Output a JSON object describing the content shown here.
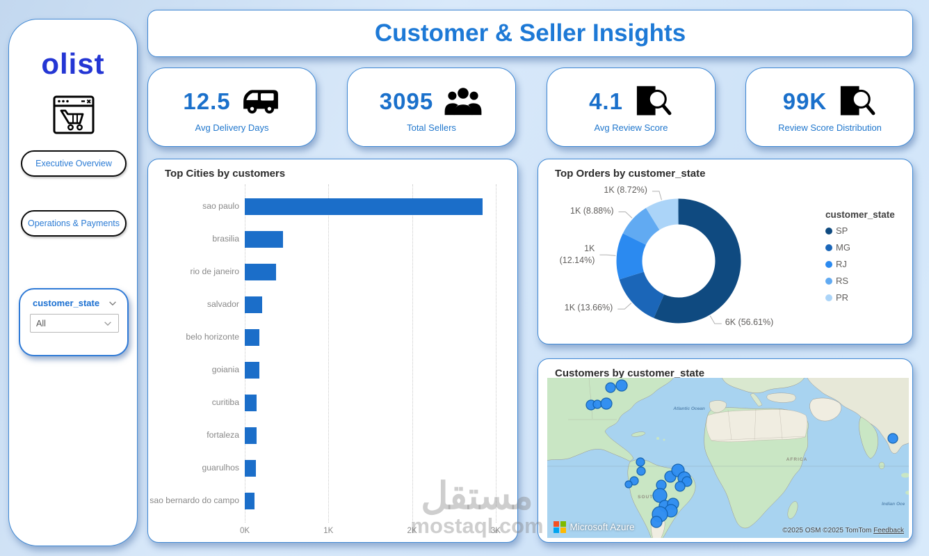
{
  "page": {
    "title": "Customer & Seller Insights"
  },
  "sidebar": {
    "logo_text": "olist",
    "nav_items": [
      {
        "label": "Executive Overview"
      },
      {
        "label": "Operations & Payments"
      }
    ],
    "filter": {
      "field_label": "customer_state",
      "selected_value": "All"
    }
  },
  "kpis": [
    {
      "value": "12.5",
      "label": "Avg Delivery Days",
      "icon": "truck-icon"
    },
    {
      "value": "3095",
      "label": "Total Sellers",
      "icon": "people-icon"
    },
    {
      "value": "4.1",
      "label": "Avg Review Score",
      "icon": "review-search-icon"
    },
    {
      "value": "99K",
      "label": "Review Score Distribution",
      "icon": "review-search-icon"
    }
  ],
  "chart_data": [
    {
      "type": "bar",
      "title": "Top Cities by customers",
      "orientation": "horizontal",
      "categories": [
        "sao paulo",
        "brasilia",
        "rio de janeiro",
        "salvador",
        "belo horizonte",
        "goiania",
        "curitiba",
        "fortaleza",
        "guarulhos",
        "sao bernardo do campo"
      ],
      "values": [
        2840,
        460,
        370,
        210,
        175,
        170,
        140,
        140,
        130,
        120
      ],
      "xlim": [
        0,
        3000
      ],
      "x_ticks": [
        {
          "label": "0K",
          "value": 0
        },
        {
          "label": "1K",
          "value": 1000
        },
        {
          "label": "2K",
          "value": 2000
        },
        {
          "label": "3K",
          "value": 3000
        }
      ],
      "bar_color": "#1b6ec9",
      "grid": "dotted-vertical"
    },
    {
      "type": "donut",
      "title": "Top Orders by customer_state",
      "legend_title": "customer_state",
      "legend_position": "right",
      "slices": [
        {
          "name": "SP",
          "label": "6K (56.61%)",
          "pct": 56.61,
          "color": "#0f4a80"
        },
        {
          "name": "MG",
          "label": "1K (13.66%)",
          "pct": 13.66,
          "color": "#1b66b8"
        },
        {
          "name": "RJ",
          "label": "1K (12.14%)",
          "pct": 12.14,
          "color": "#2b8af0"
        },
        {
          "name": "RS",
          "label": "1K (8.88%)",
          "pct": 8.88,
          "color": "#61aaf2"
        },
        {
          "name": "PR",
          "label": "1K (8.72%)",
          "pct": 8.72,
          "color": "#abd4f8"
        }
      ]
    },
    {
      "type": "map",
      "title": "Customers by customer_state",
      "ocean_labels": {
        "atlantic": "Atlantic Ocean",
        "africa": "AFRICA",
        "south": "SOUTH",
        "indian": "Indian Oce"
      },
      "brand": "Microsoft Azure",
      "attribution": "©2025 OSM  ©2025 TomTom",
      "feedback_link": "Feedback",
      "bubble_color": "#2e8df2",
      "bubble_stroke": "#1160ae",
      "points": [
        [
          182,
          28,
          14
        ],
        [
          214,
          22,
          16
        ],
        [
          126,
          78,
          14
        ],
        [
          144,
          76,
          12
        ],
        [
          170,
          74,
          16
        ],
        [
          994,
          174,
          14
        ],
        [
          268,
          242,
          12
        ],
        [
          270,
          268,
          12
        ],
        [
          250,
          296,
          12
        ],
        [
          234,
          306,
          10
        ],
        [
          354,
          284,
          16
        ],
        [
          376,
          266,
          18
        ],
        [
          394,
          288,
          18
        ],
        [
          402,
          298,
          14
        ],
        [
          382,
          312,
          14
        ],
        [
          328,
          308,
          14
        ],
        [
          324,
          338,
          20
        ],
        [
          338,
          368,
          16
        ],
        [
          362,
          362,
          16
        ],
        [
          356,
          382,
          18
        ],
        [
          324,
          392,
          22
        ],
        [
          314,
          414,
          16
        ]
      ]
    }
  ],
  "watermark": {
    "arabic": "مستقل",
    "latin": "mostaql.com"
  }
}
